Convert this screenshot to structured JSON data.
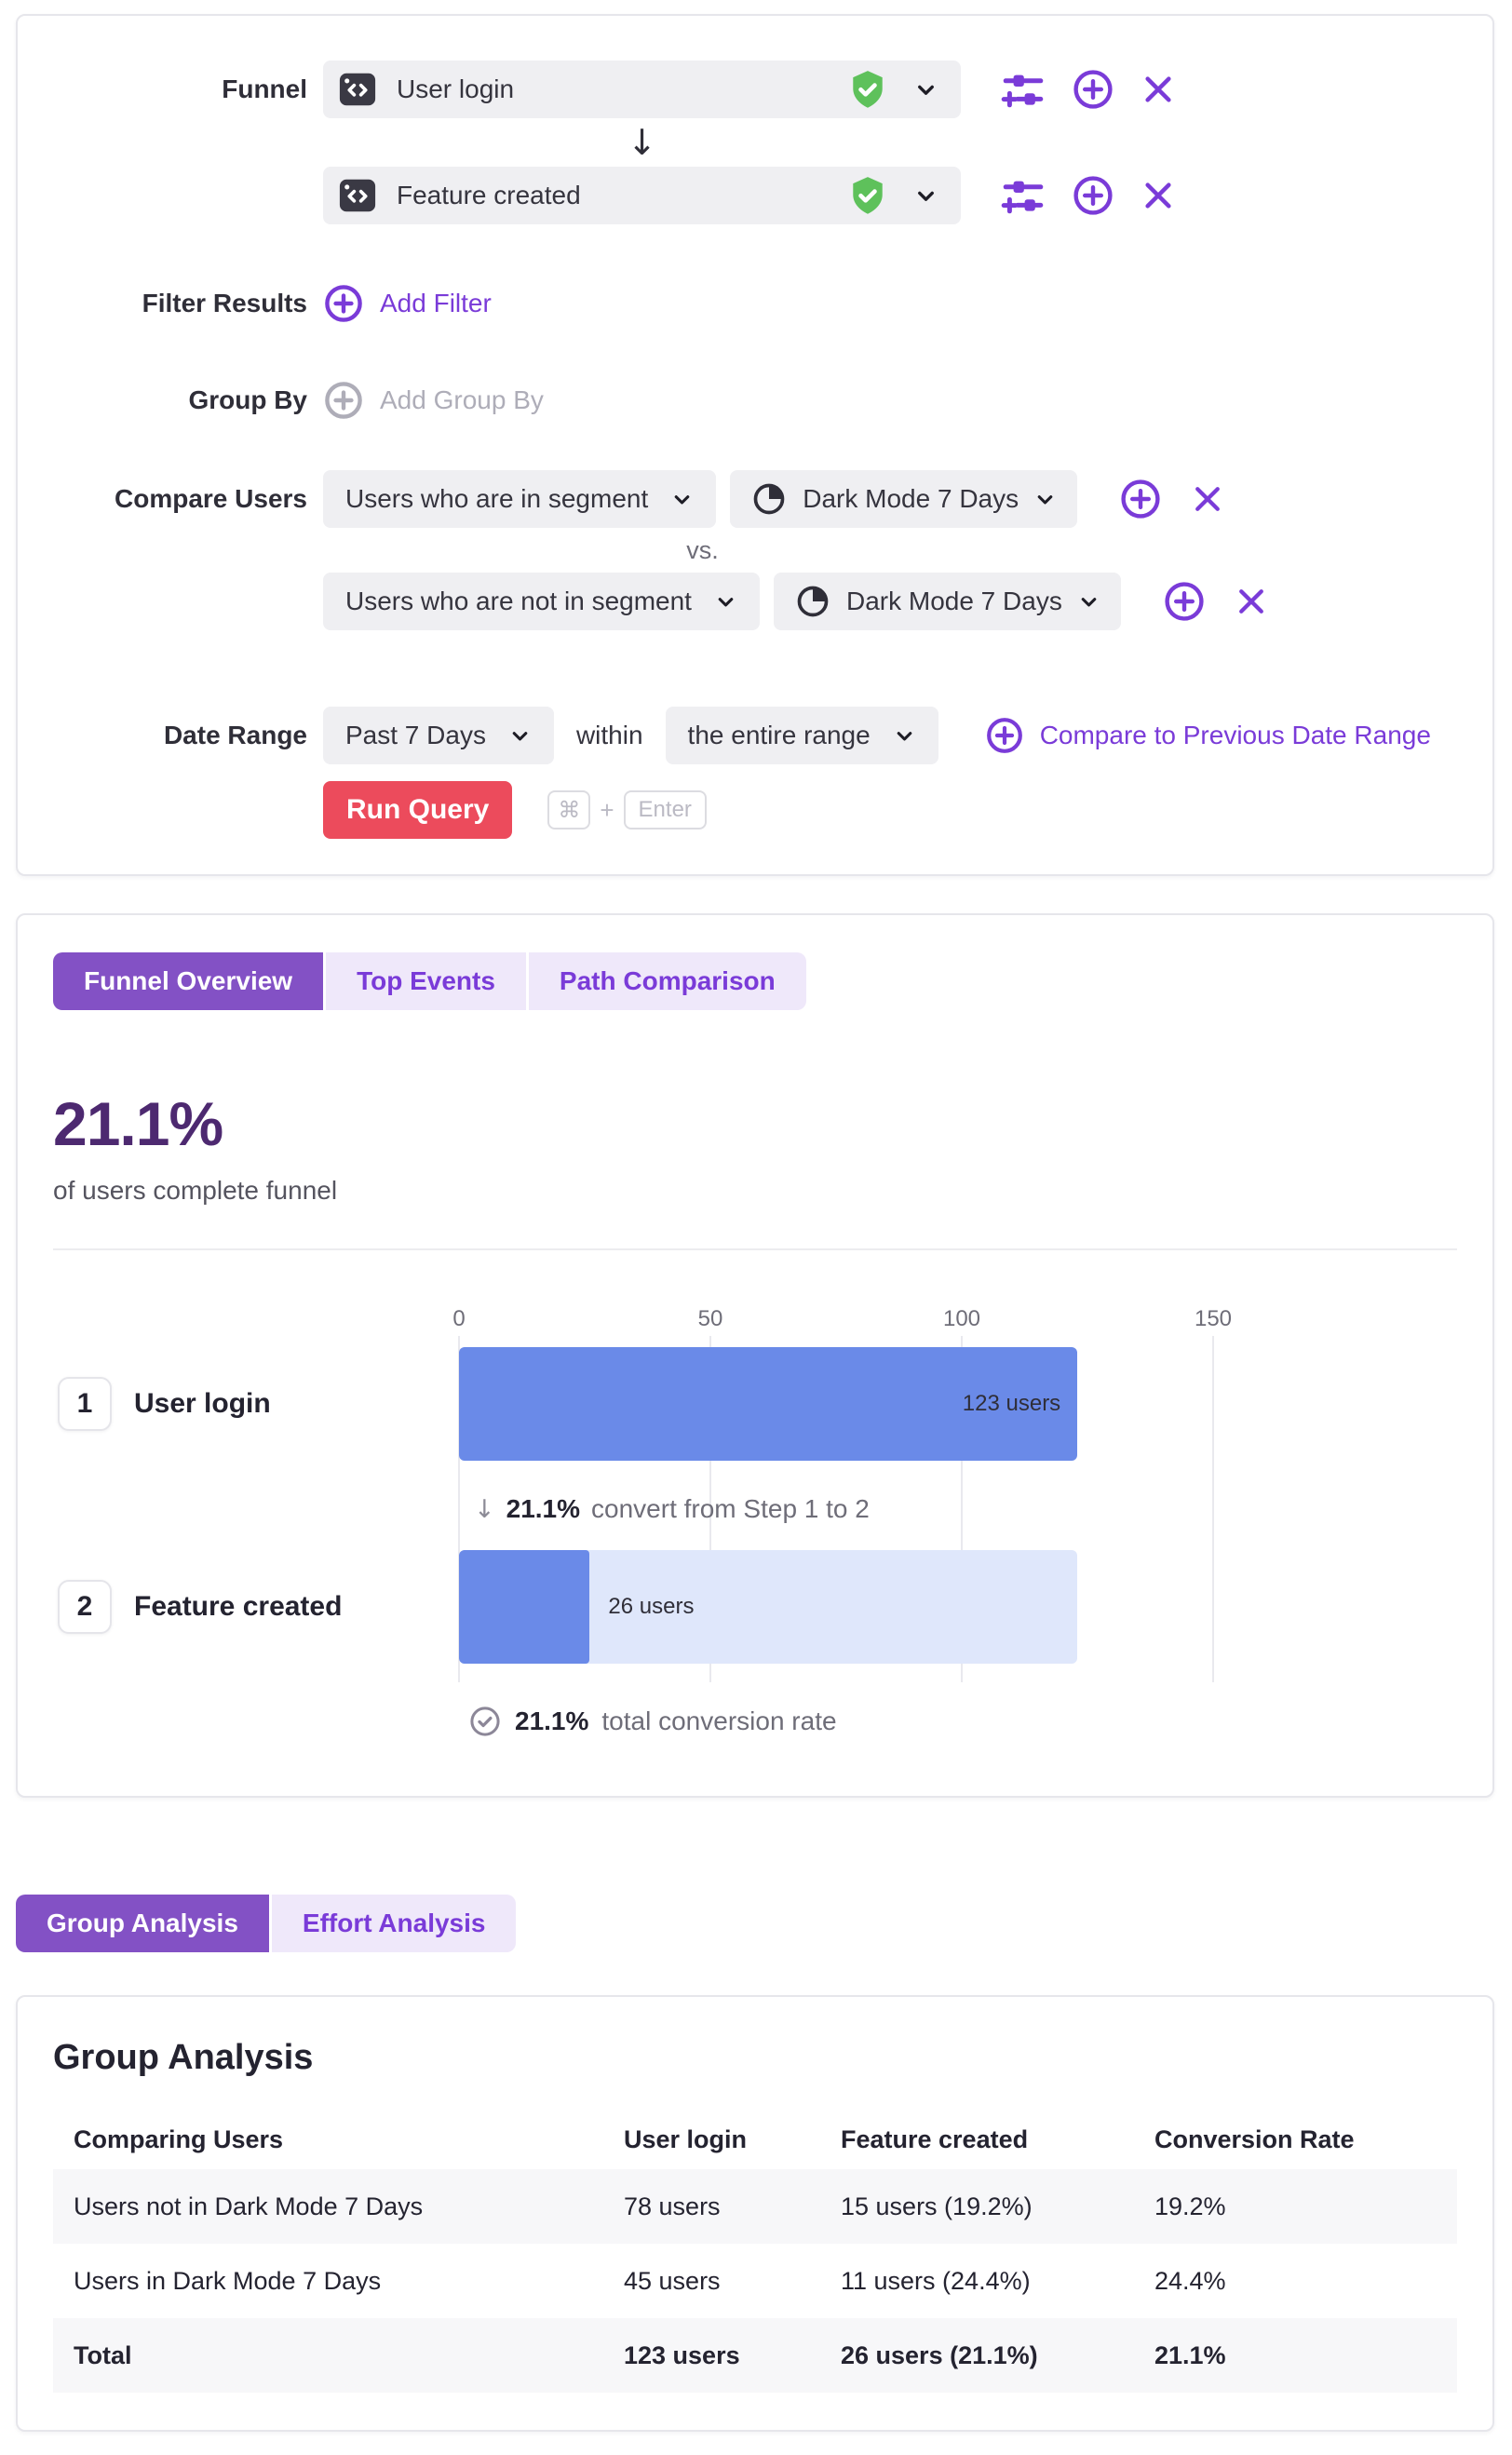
{
  "colors": {
    "accent_purple": "#7a3bd8",
    "active_tab_purple": "#8351c5",
    "headline_purple": "#4d2970",
    "run_button_red": "#ec4b5c",
    "verified_green": "#5ec15b",
    "bar_blue": "#6a8ae8",
    "bar_light_blue": "#dfe7fb"
  },
  "query_builder": {
    "funnel_label": "Funnel",
    "steps": [
      {
        "event": "User login"
      },
      {
        "event": "Feature created"
      }
    ],
    "step_connector": "↓",
    "filter_results": {
      "label": "Filter Results",
      "add_label": "Add Filter"
    },
    "group_by": {
      "label": "Group By",
      "add_label": "Add Group By"
    },
    "compare_users": {
      "label": "Compare Users",
      "vs": "vs.",
      "rows": [
        {
          "membership": "Users who are in segment",
          "segment": "Dark Mode 7 Days"
        },
        {
          "membership": "Users who are not in segment",
          "segment": "Dark Mode 7 Days"
        }
      ]
    },
    "date_range": {
      "label": "Date Range",
      "range": "Past 7 Days",
      "within": "within",
      "window": "the entire range",
      "compare_link": "Compare to Previous Date Range"
    },
    "run": {
      "button": "Run Query",
      "key_cmd": "⌘",
      "key_plus": "+",
      "key_enter": "Enter"
    }
  },
  "results": {
    "tabs": [
      "Funnel Overview",
      "Top Events",
      "Path Comparison"
    ],
    "active_tab": "Funnel Overview",
    "headline_value": "21.1%",
    "headline_caption": "of users complete funnel"
  },
  "chart_data": {
    "type": "bar",
    "orientation": "horizontal",
    "title": "Funnel Overview",
    "categories": [
      "User login",
      "Feature created"
    ],
    "step_numbers": [
      "1",
      "2"
    ],
    "values": [
      123,
      26
    ],
    "bar_labels": [
      "123 users",
      "26 users"
    ],
    "x_ticks": [
      "0",
      "50",
      "100",
      "150"
    ],
    "xlim": [
      0,
      150
    ],
    "grid": true,
    "legend": false,
    "step_conversion": {
      "arrow": "↓",
      "value": "21.1%",
      "text": "convert from Step 1 to 2"
    },
    "total_conversion": {
      "value": "21.1%",
      "text": "total conversion rate"
    }
  },
  "analysis": {
    "tabs": [
      "Group Analysis",
      "Effort Analysis"
    ],
    "active_tab": "Group Analysis",
    "title": "Group Analysis",
    "table": {
      "columns": [
        "Comparing Users",
        "User login",
        "Feature created",
        "Conversion Rate"
      ],
      "rows": [
        {
          "group": "Users not in Dark Mode 7 Days",
          "user_login": "78 users",
          "feature_created": "15 users (19.2%)",
          "conversion_rate": "19.2%"
        },
        {
          "group": "Users in Dark Mode 7 Days",
          "user_login": "45 users",
          "feature_created": "11 users (24.4%)",
          "conversion_rate": "24.4%"
        },
        {
          "group": "Total",
          "user_login": "123 users",
          "feature_created": "26 users (21.1%)",
          "conversion_rate": "21.1%"
        }
      ]
    }
  }
}
